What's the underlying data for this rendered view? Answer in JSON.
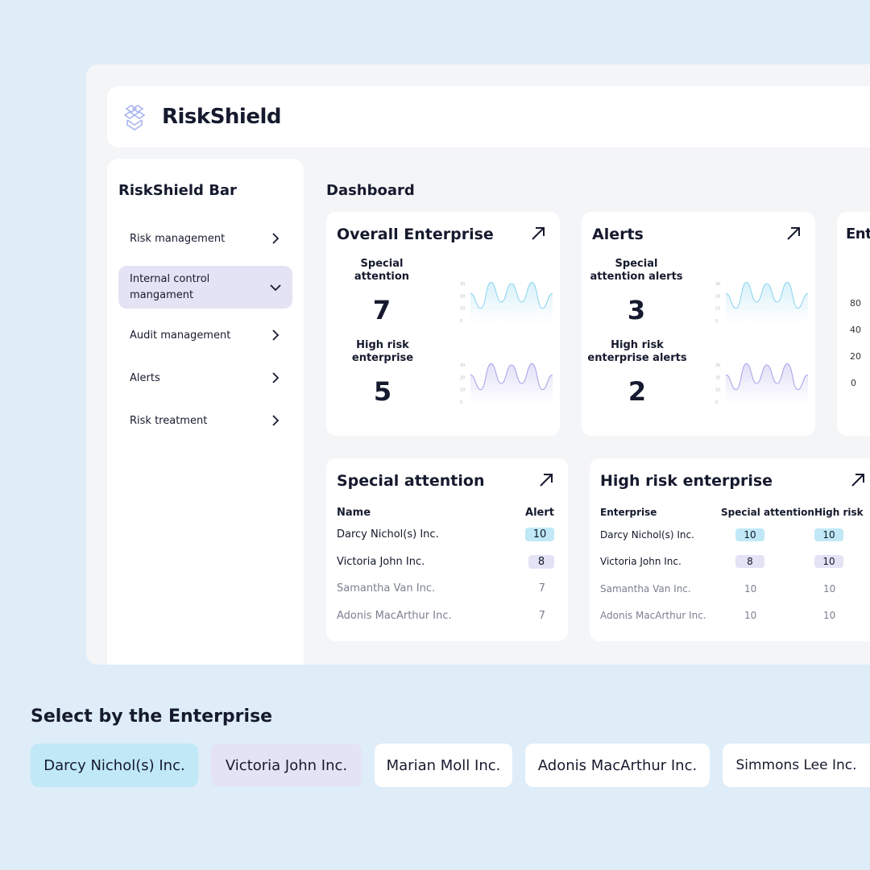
{
  "app": {
    "brand": "RiskShield"
  },
  "sidebar": {
    "title": "RiskShield Bar",
    "items": [
      {
        "label": "Risk management",
        "state": "collapsed"
      },
      {
        "label": "Internal control mangament",
        "state": "expanded"
      },
      {
        "label": "Audit management",
        "state": "collapsed"
      },
      {
        "label": "Alerts",
        "state": "collapsed"
      },
      {
        "label": "Risk treatment",
        "state": "collapsed"
      }
    ]
  },
  "dashboard": {
    "title": "Dashboard",
    "cards": [
      {
        "title": "Overall Enterprise",
        "stats": [
          {
            "label": "Special attention",
            "value": "7"
          },
          {
            "label": "High risk enterprise",
            "value": "5"
          }
        ]
      },
      {
        "title": "Alerts",
        "stats": [
          {
            "label": "Special attention alerts",
            "value": "3"
          },
          {
            "label": "High risk enterprise alerts",
            "value": "2"
          }
        ]
      },
      {
        "title": "Ent",
        "y_ticks": [
          "80",
          "40",
          "20",
          "0"
        ]
      }
    ],
    "sparkline": {
      "y_ticks": [
        "30",
        "20",
        "10",
        "0"
      ],
      "values": [
        22,
        10,
        31,
        15,
        30,
        15,
        31,
        10,
        22
      ],
      "colors": {
        "special": "#8fd6ee",
        "high_risk": "#a9a6ea"
      }
    },
    "special_attention": {
      "title": "Special attention",
      "headers": [
        "Name",
        "Alert"
      ],
      "rows": [
        {
          "name": "Darcy Nichol(s) Inc.",
          "alert": "10",
          "highlight": "blue"
        },
        {
          "name": "Victoria John Inc.",
          "alert": "8",
          "highlight": "purple"
        },
        {
          "name": "Samantha Van Inc.",
          "alert": "7",
          "highlight": ""
        },
        {
          "name": "Adonis MacArthur Inc.",
          "alert": "7",
          "highlight": ""
        }
      ]
    },
    "high_risk": {
      "title": "High risk enterprise",
      "headers": [
        "Enterprise",
        "Special attention",
        "High risk"
      ],
      "rows": [
        {
          "name": "Darcy Nichol(s) Inc.",
          "special": "10",
          "high": "10",
          "highlight": "blue"
        },
        {
          "name": "Victoria John Inc.",
          "special": "8",
          "high": "10",
          "highlight": "purple"
        },
        {
          "name": "Samantha Van Inc.",
          "special": "10",
          "high": "10",
          "highlight": ""
        },
        {
          "name": "Adonis MacArthur Inc.",
          "special": "10",
          "high": "10",
          "highlight": ""
        }
      ]
    }
  },
  "select": {
    "title": "Select by the Enterprise",
    "chips": [
      {
        "label": "Darcy Nichol(s) Inc.",
        "color": "#c0e8f6"
      },
      {
        "label": "Victoria John Inc.",
        "color": "#e4e3f5"
      },
      {
        "label": "Marian Moll Inc.",
        "color": "#ffffff"
      },
      {
        "label": "Adonis MacArthur Inc.",
        "color": "#ffffff"
      },
      {
        "label": "Simmons Lee Inc.",
        "color": "#ffffff"
      }
    ]
  }
}
